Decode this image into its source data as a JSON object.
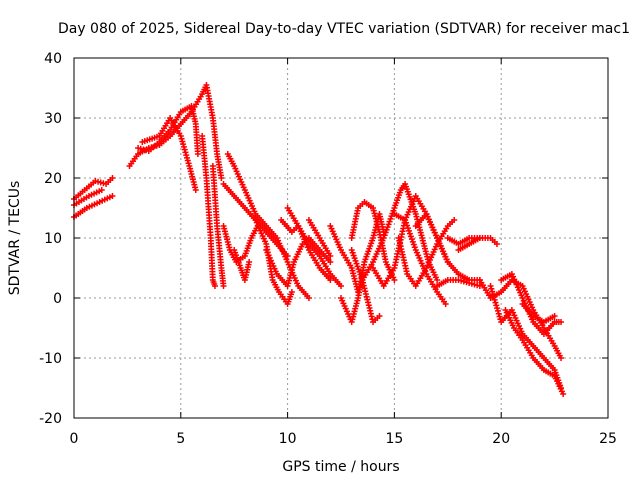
{
  "chart_data": {
    "type": "scatter",
    "title": "Day 080 of 2025, Sidereal Day-to-day VTEC variation (SDTVAR) for receiver mac1",
    "xlabel": "GPS time / hours",
    "ylabel": "SDTVAR / TECUs",
    "xlim": [
      0,
      25
    ],
    "ylim": [
      -20,
      40
    ],
    "xticks": [
      0,
      5,
      10,
      15,
      20,
      25
    ],
    "yticks": [
      -20,
      -10,
      0,
      10,
      20,
      30,
      40
    ],
    "grid": true,
    "marker": "+",
    "series": [
      {
        "name": "SDTVAR",
        "color": "#ff0000",
        "tracks": [
          [
            [
              0,
              16.5
            ],
            [
              0.5,
              18
            ],
            [
              1,
              19.5
            ],
            [
              1.5,
              19
            ],
            [
              1.8,
              20
            ]
          ],
          [
            [
              0,
              13.5
            ],
            [
              0.6,
              15
            ],
            [
              1.2,
              16
            ],
            [
              1.8,
              17
            ]
          ],
          [
            [
              0,
              15.5
            ],
            [
              0.7,
              17
            ],
            [
              1.3,
              18
            ]
          ],
          [
            [
              2.6,
              22
            ],
            [
              3,
              24
            ],
            [
              3.5,
              25
            ],
            [
              4,
              25.5
            ],
            [
              4.5,
              27
            ],
            [
              5,
              29
            ],
            [
              5.5,
              31
            ],
            [
              6,
              34
            ],
            [
              6.2,
              35.5
            ],
            [
              6.5,
              30
            ],
            [
              6.7,
              24
            ],
            [
              6.9,
              20
            ]
          ],
          [
            [
              3,
              25
            ],
            [
              3.5,
              24.5
            ],
            [
              4,
              26
            ],
            [
              4.5,
              28
            ],
            [
              5,
              31
            ],
            [
              5.5,
              32
            ],
            [
              5.7,
              29
            ],
            [
              5.8,
              24
            ]
          ],
          [
            [
              3.2,
              26
            ],
            [
              4,
              27
            ],
            [
              4.5,
              30
            ],
            [
              5,
              27
            ],
            [
              5.4,
              22
            ],
            [
              5.7,
              18
            ]
          ],
          [
            [
              6,
              27
            ],
            [
              6.2,
              20
            ],
            [
              6.4,
              10
            ],
            [
              6.5,
              3
            ],
            [
              6.6,
              2
            ]
          ],
          [
            [
              6.5,
              22
            ],
            [
              6.7,
              12
            ],
            [
              6.9,
              5
            ],
            [
              7,
              2
            ]
          ],
          [
            [
              7.2,
              24
            ],
            [
              7.5,
              22
            ],
            [
              8,
              18
            ],
            [
              8.5,
              14
            ],
            [
              9,
              12
            ],
            [
              9.5,
              10
            ],
            [
              10,
              6
            ],
            [
              10.5,
              2
            ],
            [
              11,
              0
            ]
          ],
          [
            [
              7,
              19
            ],
            [
              7.5,
              17
            ],
            [
              8,
              15
            ],
            [
              8.5,
              13
            ],
            [
              9,
              11
            ],
            [
              9.5,
              9
            ],
            [
              10,
              7
            ]
          ],
          [
            [
              7,
              12
            ],
            [
              7.3,
              8
            ],
            [
              7.6,
              6
            ],
            [
              8,
              7
            ],
            [
              8.3,
              10
            ],
            [
              8.6,
              12
            ]
          ],
          [
            [
              7.5,
              8
            ],
            [
              7.8,
              5
            ],
            [
              8,
              3
            ],
            [
              8.2,
              6
            ]
          ],
          [
            [
              8.5,
              13
            ],
            [
              9,
              9
            ],
            [
              9.3,
              3
            ],
            [
              9.6,
              1
            ],
            [
              10,
              -1
            ],
            [
              10.2,
              1
            ]
          ],
          [
            [
              9,
              8
            ],
            [
              9.5,
              4
            ],
            [
              10,
              2
            ],
            [
              10.3,
              6
            ],
            [
              10.7,
              9
            ],
            [
              11,
              10
            ],
            [
              11.5,
              8
            ],
            [
              12,
              6
            ]
          ],
          [
            [
              9.7,
              13
            ],
            [
              10.2,
              11
            ],
            [
              10.5,
              12
            ],
            [
              11,
              9
            ],
            [
              11.5,
              7
            ],
            [
              12,
              4
            ],
            [
              12.5,
              2
            ]
          ],
          [
            [
              10,
              15
            ],
            [
              10.5,
              12
            ],
            [
              11,
              8
            ],
            [
              11.5,
              5
            ],
            [
              12,
              3
            ]
          ],
          [
            [
              11,
              13
            ],
            [
              11.5,
              10
            ],
            [
              12,
              7
            ]
          ],
          [
            [
              12,
              12
            ],
            [
              12.5,
              8
            ],
            [
              13,
              5
            ],
            [
              13.3,
              1
            ],
            [
              13.5,
              3
            ],
            [
              14,
              -4
            ],
            [
              14.3,
              -3
            ]
          ],
          [
            [
              12.5,
              0
            ],
            [
              13,
              -4
            ],
            [
              13.3,
              0
            ],
            [
              13.6,
              6
            ],
            [
              14,
              10
            ],
            [
              14.3,
              14
            ],
            [
              14.5,
              11
            ]
          ],
          [
            [
              13,
              10
            ],
            [
              13.3,
              15
            ],
            [
              13.6,
              16
            ],
            [
              14,
              15
            ],
            [
              14.3,
              11
            ],
            [
              14.6,
              6
            ],
            [
              15,
              3
            ]
          ],
          [
            [
              13,
              8
            ],
            [
              13.5,
              3
            ],
            [
              14,
              6
            ],
            [
              14.5,
              10
            ],
            [
              15,
              15
            ],
            [
              15.3,
              18
            ],
            [
              15.5,
              19
            ],
            [
              15.8,
              16
            ],
            [
              16,
              14
            ],
            [
              16.3,
              10
            ],
            [
              16.6,
              6
            ],
            [
              17,
              3
            ]
          ],
          [
            [
              14,
              5
            ],
            [
              14.5,
              2
            ],
            [
              15,
              5
            ],
            [
              15.5,
              13
            ],
            [
              16,
              17
            ],
            [
              16.5,
              14
            ],
            [
              17,
              10
            ],
            [
              17.5,
              6
            ]
          ],
          [
            [
              15,
              14
            ],
            [
              15.5,
              13
            ],
            [
              16,
              8
            ],
            [
              16.5,
              4
            ],
            [
              17,
              1
            ],
            [
              17.4,
              -1
            ]
          ],
          [
            [
              15.2,
              10
            ],
            [
              15.6,
              4
            ],
            [
              16,
              2
            ],
            [
              16.5,
              5
            ],
            [
              17,
              9
            ],
            [
              17.5,
              12
            ],
            [
              17.8,
              13
            ]
          ],
          [
            [
              16,
              12
            ],
            [
              16.5,
              14
            ],
            [
              17,
              10
            ],
            [
              17.5,
              6
            ],
            [
              18,
              4
            ],
            [
              18.5,
              3
            ],
            [
              19,
              3
            ]
          ],
          [
            [
              17,
              2
            ],
            [
              17.5,
              3
            ],
            [
              18,
              3
            ],
            [
              18.5,
              2.5
            ],
            [
              19,
              2
            ]
          ],
          [
            [
              18,
              8
            ],
            [
              18.5,
              9
            ],
            [
              19,
              10
            ],
            [
              19.5,
              10
            ],
            [
              19.8,
              9
            ]
          ],
          [
            [
              17.5,
              10
            ],
            [
              18,
              9
            ],
            [
              18.5,
              10
            ],
            [
              19,
              10
            ]
          ],
          [
            [
              19,
              3
            ],
            [
              19.5,
              0
            ],
            [
              20,
              1
            ],
            [
              20.5,
              3
            ],
            [
              21,
              2
            ],
            [
              21.5,
              -2
            ],
            [
              22,
              -5
            ],
            [
              22.5,
              -8
            ],
            [
              22.8,
              -10
            ]
          ],
          [
            [
              19.5,
              2
            ],
            [
              20,
              -4
            ],
            [
              20.5,
              -2
            ],
            [
              21,
              -6
            ],
            [
              21.5,
              -8
            ],
            [
              22,
              -10
            ],
            [
              22.5,
              -12
            ],
            [
              22.8,
              -15
            ]
          ],
          [
            [
              20,
              3
            ],
            [
              20.5,
              4
            ],
            [
              21,
              0
            ],
            [
              21.5,
              -4
            ],
            [
              22,
              -6
            ],
            [
              22.5,
              -4
            ],
            [
              22.8,
              -4
            ]
          ],
          [
            [
              20.2,
              -2
            ],
            [
              20.6,
              -5
            ],
            [
              21,
              -7
            ],
            [
              21.5,
              -10
            ],
            [
              22,
              -12
            ],
            [
              22.5,
              -13
            ],
            [
              22.9,
              -16
            ]
          ],
          [
            [
              21,
              -1
            ],
            [
              21.5,
              -3
            ],
            [
              22,
              -4
            ],
            [
              22.5,
              -3
            ]
          ]
        ]
      }
    ]
  }
}
